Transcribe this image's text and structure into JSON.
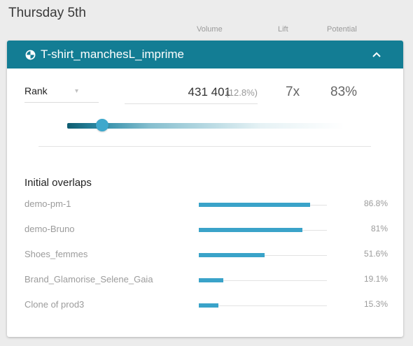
{
  "day_title": "Thursday 5th",
  "columns": {
    "volume": "Volume",
    "lift": "Lift",
    "potential": "Potential"
  },
  "segment": {
    "title": "T-shirt_manchesL_imprime",
    "icon": "segment-pie-icon",
    "collapse_icon": "chevron-up-icon",
    "header_color": "#137d94"
  },
  "rank": {
    "label": "Rank",
    "caret": "▾"
  },
  "metrics": {
    "volume": "431 401",
    "volume_pct": "(12.8%)",
    "lift": "7x",
    "potential": "83%"
  },
  "slider": {
    "level": 0.13,
    "thumb_color": "#3ea8cc"
  },
  "overlaps": {
    "title": "Initial overlaps",
    "bar_color": "#3aa3c9",
    "items": [
      {
        "name": "demo-pm-1",
        "pct": "86.8%",
        "value": 0.868
      },
      {
        "name": "demo-Bruno",
        "pct": "81%",
        "value": 0.81
      },
      {
        "name": "Shoes_femmes",
        "pct": "51.6%",
        "value": 0.516
      },
      {
        "name": "Brand_Glamorise_Selene_Gaia",
        "pct": "19.1%",
        "value": 0.191
      },
      {
        "name": "Clone of prod3",
        "pct": "15.3%",
        "value": 0.153
      }
    ]
  }
}
